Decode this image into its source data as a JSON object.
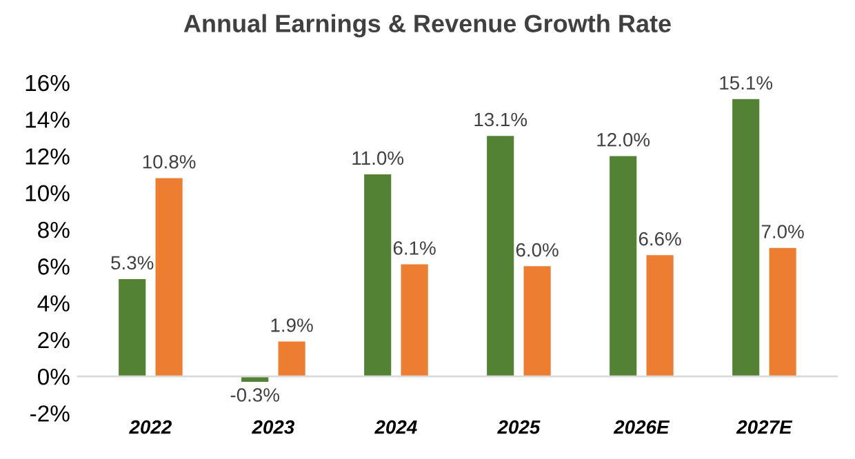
{
  "chart_data": {
    "type": "bar",
    "title": "Annual Earnings & Revenue Growth Rate",
    "categories": [
      "2022",
      "2023",
      "2024",
      "2025",
      "2026E",
      "2027E"
    ],
    "series": [
      {
        "color": "#548235",
        "values": [
          5.3,
          -0.3,
          11.0,
          13.1,
          12.0,
          15.1
        ],
        "value_labels": [
          "5.3%",
          "-0.3%",
          "11.0%",
          "13.1%",
          "12.0%",
          "15.1%"
        ]
      },
      {
        "color": "#ed7d31",
        "values": [
          10.8,
          1.9,
          6.1,
          6.0,
          6.6,
          7.0
        ],
        "value_labels": [
          "10.8%",
          "1.9%",
          "6.1%",
          "6.0%",
          "6.6%",
          "7.0%"
        ]
      }
    ],
    "ylim": [
      -2,
      16
    ],
    "yticks": [
      {
        "value": -2,
        "label": "-2%"
      },
      {
        "value": 0,
        "label": "0%"
      },
      {
        "value": 2,
        "label": "2%"
      },
      {
        "value": 4,
        "label": "4%"
      },
      {
        "value": 6,
        "label": "6%"
      },
      {
        "value": 8,
        "label": "8%"
      },
      {
        "value": 10,
        "label": "10%"
      },
      {
        "value": 12,
        "label": "12%"
      },
      {
        "value": 14,
        "label": "14%"
      },
      {
        "value": 16,
        "label": "16%"
      }
    ],
    "grid": false,
    "legend": false
  }
}
